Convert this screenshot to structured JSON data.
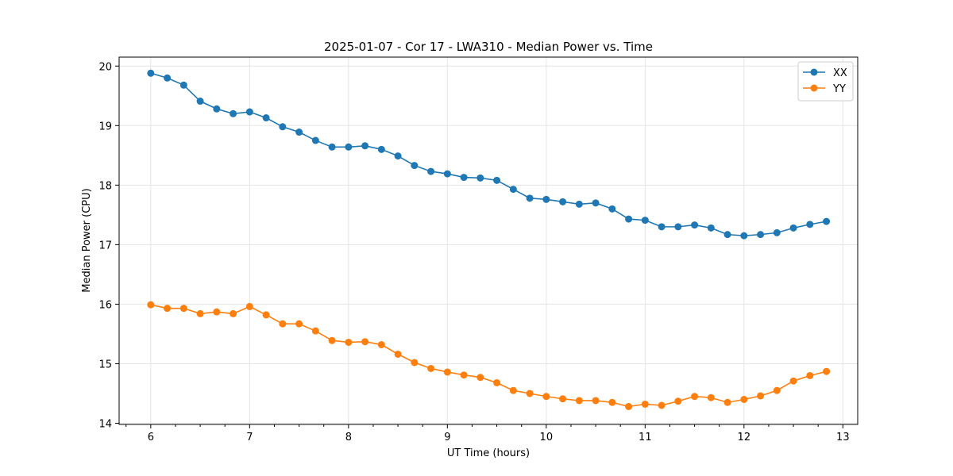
{
  "chart_data": {
    "type": "line",
    "title": "2025-01-07 - Cor 17 - LWA310 - Median Power vs. Time",
    "xlabel": "UT Time (hours)",
    "ylabel": "Median Power (CPU)",
    "xlim": [
      5.68,
      13.15
    ],
    "ylim": [
      13.98,
      20.15
    ],
    "xticks": [
      6,
      7,
      8,
      9,
      10,
      11,
      12,
      13
    ],
    "yticks": [
      14,
      15,
      16,
      17,
      18,
      19,
      20
    ],
    "grid": true,
    "legend_position": "top-right",
    "x": [
      6.0,
      6.1667,
      6.3333,
      6.5,
      6.6667,
      6.8333,
      7.0,
      7.1667,
      7.3333,
      7.5,
      7.6667,
      7.8333,
      8.0,
      8.1667,
      8.3333,
      8.5,
      8.6667,
      8.8333,
      9.0,
      9.1667,
      9.3333,
      9.5,
      9.6667,
      9.8333,
      10.0,
      10.1667,
      10.3333,
      10.5,
      10.6667,
      10.8333,
      11.0,
      11.1667,
      11.3333,
      11.5,
      11.6667,
      11.8333,
      12.0,
      12.1667,
      12.3333,
      12.5,
      12.6667,
      12.8333
    ],
    "series": [
      {
        "name": "XX",
        "color": "#1f77b4",
        "values": [
          19.88,
          19.8,
          19.68,
          19.41,
          19.28,
          19.2,
          19.23,
          19.13,
          18.98,
          18.89,
          18.75,
          18.64,
          18.64,
          18.66,
          18.6,
          18.49,
          18.33,
          18.23,
          18.19,
          18.13,
          18.12,
          18.08,
          17.93,
          17.78,
          17.76,
          17.72,
          17.68,
          17.7,
          17.6,
          17.43,
          17.41,
          17.3,
          17.3,
          17.33,
          17.28,
          17.17,
          17.15,
          17.17,
          17.2,
          17.28,
          17.34,
          17.39
        ]
      },
      {
        "name": "YY",
        "color": "#ff7f0e",
        "values": [
          15.99,
          15.93,
          15.93,
          15.84,
          15.87,
          15.84,
          15.96,
          15.82,
          15.67,
          15.67,
          15.55,
          15.39,
          15.36,
          15.37,
          15.32,
          15.16,
          15.02,
          14.92,
          14.86,
          14.81,
          14.77,
          14.68,
          14.55,
          14.5,
          14.45,
          14.41,
          14.38,
          14.38,
          14.35,
          14.28,
          14.32,
          14.3,
          14.37,
          14.45,
          14.43,
          14.35,
          14.4,
          14.46,
          14.55,
          14.71,
          14.8,
          14.87
        ]
      }
    ]
  }
}
